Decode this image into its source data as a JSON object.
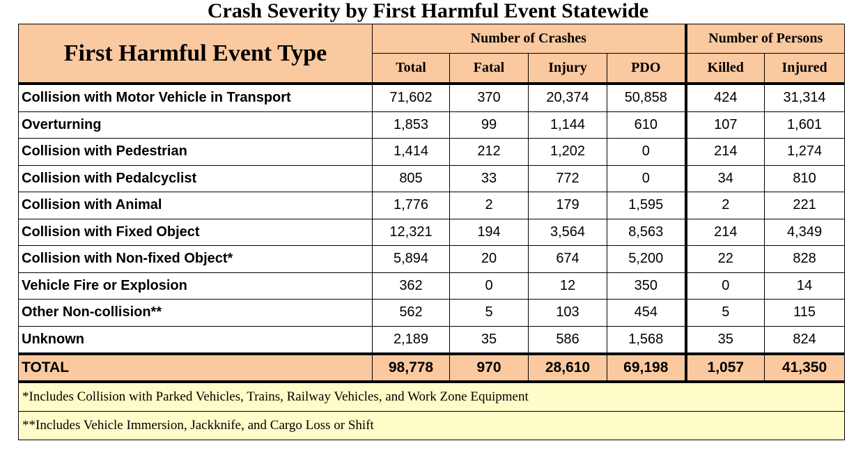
{
  "title": "Crash Severity by First Harmful Event Statewide",
  "header": {
    "event_type": "First Harmful Event Type",
    "group_crashes": "Number of Crashes",
    "group_persons": "Number of Persons",
    "columns": [
      "Total",
      "Fatal",
      "Injury",
      "PDO",
      "Killed",
      "Injured"
    ]
  },
  "rows": [
    {
      "label": "Collision with Motor Vehicle in Transport",
      "values": [
        "71,602",
        "370",
        "20,374",
        "50,858",
        "424",
        "31,314"
      ]
    },
    {
      "label": "Overturning",
      "values": [
        "1,853",
        "99",
        "1,144",
        "610",
        "107",
        "1,601"
      ]
    },
    {
      "label": "Collision with Pedestrian",
      "values": [
        "1,414",
        "212",
        "1,202",
        "0",
        "214",
        "1,274"
      ]
    },
    {
      "label": "Collision with Pedalcyclist",
      "values": [
        "805",
        "33",
        "772",
        "0",
        "34",
        "810"
      ]
    },
    {
      "label": "Collision with Animal",
      "values": [
        "1,776",
        "2",
        "179",
        "1,595",
        "2",
        "221"
      ]
    },
    {
      "label": "Collision with Fixed Object",
      "values": [
        "12,321",
        "194",
        "3,564",
        "8,563",
        "214",
        "4,349"
      ]
    },
    {
      "label": "Collision with Non-fixed Object*",
      "values": [
        "5,894",
        "20",
        "674",
        "5,200",
        "22",
        "828"
      ]
    },
    {
      "label": "Vehicle Fire or Explosion",
      "values": [
        "362",
        "0",
        "12",
        "350",
        "0",
        "14"
      ]
    },
    {
      "label": "Other Non-collision**",
      "values": [
        "562",
        "5",
        "103",
        "454",
        "5",
        "115"
      ]
    },
    {
      "label": "Unknown",
      "values": [
        "2,189",
        "35",
        "586",
        "1,568",
        "35",
        "824"
      ]
    }
  ],
  "total": {
    "label": "TOTAL",
    "values": [
      "98,778",
      "970",
      "28,610",
      "69,198",
      "1,057",
      "41,350"
    ]
  },
  "notes": [
    "*Includes Collision with Parked Vehicles, Trains, Railway Vehicles, and Work Zone Equipment",
    "**Includes Vehicle Immersion, Jackknife, and Cargo Loss or Shift"
  ]
}
